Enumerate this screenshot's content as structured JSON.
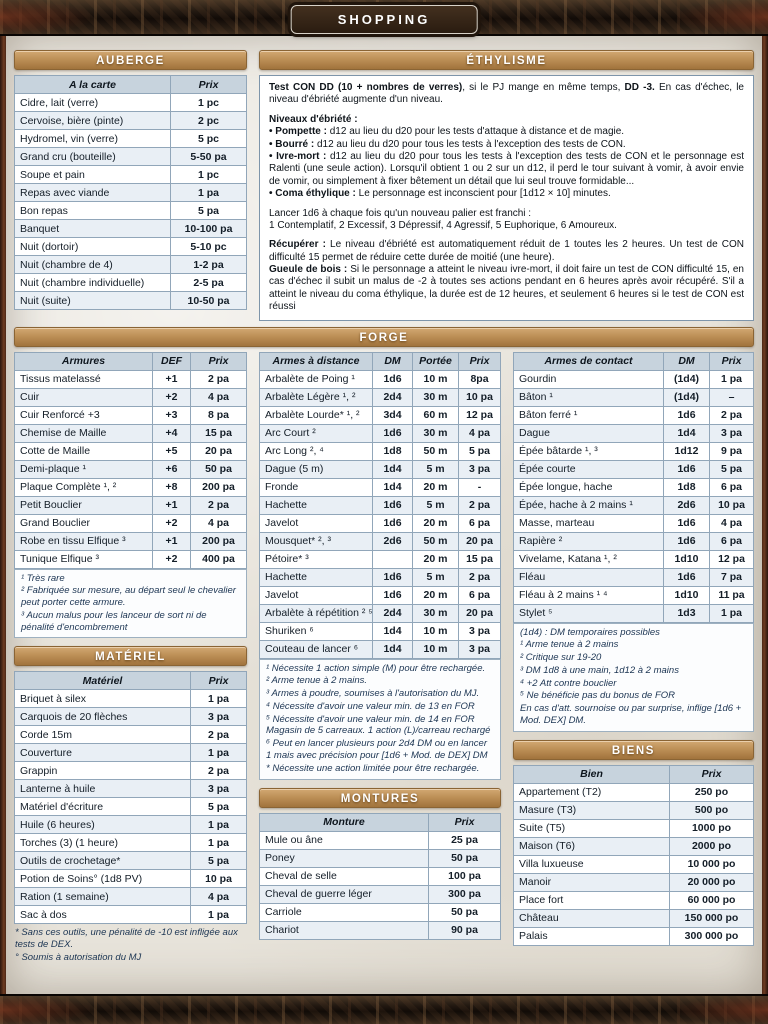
{
  "page": {
    "title": "SHOPPING"
  },
  "colors": {
    "accent_bar": "#bd9057",
    "table_header": "#c7d3dd",
    "row_alt": "#e9eff5",
    "badge": "#2a1c10"
  },
  "sections": {
    "auberge": {
      "title": "AUBERGE",
      "headers": [
        "A la carte",
        "Prix"
      ],
      "rows": [
        [
          "Cidre, lait (verre)",
          "1 pc"
        ],
        [
          "Cervoise, bière (pinte)",
          "2 pc"
        ],
        [
          "Hydromel, vin (verre)",
          "5 pc"
        ],
        [
          "Grand cru (bouteille)",
          "5-50 pa"
        ],
        [
          "Soupe et pain",
          "1 pc"
        ],
        [
          "Repas avec viande",
          "1 pa"
        ],
        [
          "Bon repas",
          "5 pa"
        ],
        [
          "Banquet",
          "10-100 pa"
        ],
        [
          "Nuit (dortoir)",
          "5-10 pc"
        ],
        [
          "Nuit (chambre de 4)",
          "1-2 pa"
        ],
        [
          "Nuit (chambre individuelle)",
          "2-5 pa"
        ],
        [
          "Nuit (suite)",
          "10-50 pa"
        ]
      ]
    },
    "ethylisme": {
      "title": "ÉTHYLISME",
      "blocks": [
        {
          "cls": "",
          "segs": [
            {
              "t": "Test CON DD (10 + nombres de verres)",
              "b": true
            },
            {
              "t": ", si le PJ mange en même temps, "
            },
            {
              "t": "DD -3.",
              "b": true
            },
            {
              "t": " En cas d'échec, le niveau d'ébriété augmente d'un niveau."
            }
          ]
        },
        {
          "cls": "mt",
          "segs": [
            {
              "t": "Niveaux d'ébriété :",
              "b": true
            }
          ]
        },
        {
          "cls": "",
          "segs": [
            {
              "t": "• Pompette :",
              "b": true
            },
            {
              "t": " d12 au lieu du d20 pour les tests d'attaque à distance et de magie."
            }
          ]
        },
        {
          "cls": "",
          "segs": [
            {
              "t": "• Bourré :",
              "b": true
            },
            {
              "t": " d12 au lieu du d20 pour tous les tests à l'exception des tests de CON."
            }
          ]
        },
        {
          "cls": "",
          "segs": [
            {
              "t": "• Ivre-mort :",
              "b": true
            },
            {
              "t": " d12 au lieu du d20 pour tous les tests à l'exception des tests de CON et le personnage est Ralenti (une seule action). Lorsqu'il obtient 1 ou 2 sur un d12, il perd le tour suivant à vomir, à avoir envie de vomir, ou simplement à fixer bêtement un détail que lui seul trouve formidable..."
            }
          ]
        },
        {
          "cls": "",
          "segs": [
            {
              "t": "• Coma éthylique :",
              "b": true
            },
            {
              "t": " Le personnage est inconscient pour [1d12 × 10] minutes."
            }
          ]
        },
        {
          "cls": "mt",
          "segs": [
            {
              "t": "Lancer 1d6 à chaque fois qu'un nouveau palier est franchi :"
            }
          ]
        },
        {
          "cls": "",
          "segs": [
            {
              "t": "1 Contemplatif, 2 Excessif, 3 Dépressif, 4 Agressif, 5 Euphorique, 6 Amoureux."
            }
          ]
        },
        {
          "cls": "mt",
          "segs": [
            {
              "t": "Récupérer :",
              "b": true
            },
            {
              "t": " Le niveau d'ébriété est automatiquement réduit de 1 toutes les 2 heures. Un test de CON difficulté 15 permet de réduire cette durée de moitié (une heure)."
            }
          ]
        },
        {
          "cls": "",
          "segs": [
            {
              "t": "Gueule de bois :",
              "b": true
            },
            {
              "t": " Si le personnage a atteint le niveau ivre-mort, il doit faire un test de CON difficulté 15, en cas d'échec il subit un malus de -2 à toutes ses actions pendant en 6 heures après avoir récupéré. S'il a atteint le niveau du coma éthylique, la durée est de 12 heures, et seulement 6 heures si le test de CON est réussi"
            }
          ]
        }
      ]
    },
    "forge": {
      "title": "FORGE"
    },
    "armures": {
      "headers": [
        "Armures",
        "DEF",
        "Prix"
      ],
      "rows": [
        [
          "Tissus matelassé",
          "+1",
          "2 pa"
        ],
        [
          "Cuir",
          "+2",
          "4 pa"
        ],
        [
          "Cuir Renforcé +3",
          "+3",
          "8 pa"
        ],
        [
          "Chemise de Maille",
          "+4",
          "15 pa"
        ],
        [
          "Cotte de Maille",
          "+5",
          "20 pa"
        ],
        [
          "Demi-plaque ¹",
          "+6",
          "50 pa"
        ],
        [
          "Plaque Complète ¹, ²",
          "+8",
          "200 pa"
        ],
        [
          "Petit Bouclier",
          "+1",
          "2 pa"
        ],
        [
          "Grand Bouclier",
          "+2",
          "4 pa"
        ],
        [
          "Robe en tissu Elfique ³",
          "+1",
          "200 pa"
        ],
        [
          "Tunique Elfique ³",
          "+2",
          "400 pa"
        ]
      ],
      "notes": [
        "¹ Très rare",
        "² Fabriquée sur mesure, au départ seul le chevalier peut porter cette armure.",
        "³ Aucun malus pour les lanceur de sort ni de pénalité d'encombrement"
      ]
    },
    "armes_distance": {
      "headers": [
        "Armes à distance",
        "DM",
        "Portée",
        "Prix"
      ],
      "rows": [
        [
          "Arbalète de Poing ¹",
          "1d6",
          "10 m",
          "8pa"
        ],
        [
          "Arbalète Légère ¹, ²",
          "2d4",
          "30 m",
          "10 pa"
        ],
        [
          "Arbalète Lourde* ¹, ²",
          "3d4",
          "60 m",
          "12 pa"
        ],
        [
          "Arc Court ²",
          "1d6",
          "30 m",
          "4 pa"
        ],
        [
          "Arc Long ², ⁴",
          "1d8",
          "50 m",
          "5 pa"
        ],
        [
          "Dague (5 m)",
          "1d4",
          "5 m",
          "3 pa"
        ],
        [
          "Fronde",
          "1d4",
          "20 m",
          "-"
        ],
        [
          "Hachette",
          "1d6",
          "5 m",
          "2 pa"
        ],
        [
          "Javelot",
          "1d6",
          "20 m",
          "6 pa"
        ],
        [
          "Mousquet* ², ³",
          "2d6",
          "50 m",
          "20 pa"
        ],
        [
          "Pétoire* ³",
          "",
          "20 m",
          "15 pa"
        ],
        [
          "Hachette",
          "1d6",
          "5 m",
          "2 pa"
        ],
        [
          "Javelot",
          "1d6",
          "20 m",
          "6 pa"
        ],
        [
          "Arbalète à répétition ² ⁵ *",
          "2d4",
          "30 m",
          "20 pa"
        ],
        [
          "Shuriken ⁶",
          "1d4",
          "10 m",
          "3 pa"
        ],
        [
          "Couteau de lancer ⁶",
          "1d4",
          "10 m",
          "3 pa"
        ]
      ],
      "notes": [
        "¹ Nécessite 1 action simple (M) pour être rechargée.",
        "² Arme tenue à 2 mains.",
        "³ Armes à poudre, soumises à l'autorisation du MJ.",
        "⁴ Nécessite d'avoir une valeur min. de 13 en FOR",
        "⁵ Nécessite d'avoir une valeur min. de 14 en FOR Magasin de 5 carreaux. 1 action (L)/carreau rechargé",
        "⁶ Peut en lancer plusieurs pour 2d4 DM ou en lancer 1 mais avec précision pour [1d6 + Mod. de DEX] DM",
        "* Nécessite une action limitée pour être rechargée."
      ]
    },
    "armes_contact": {
      "headers": [
        "Armes de contact",
        "DM",
        "Prix"
      ],
      "rows": [
        [
          "Gourdin",
          "(1d4)",
          "1 pa"
        ],
        [
          "Bâton ¹",
          "(1d4)",
          "–"
        ],
        [
          "Bâton ferré ¹",
          "1d6",
          "2 pa"
        ],
        [
          "Dague",
          "1d4",
          "3 pa"
        ],
        [
          "Épée bâtarde ¹, ³",
          "1d12",
          "9 pa"
        ],
        [
          "Épée courte",
          "1d6",
          "5 pa"
        ],
        [
          "Épée longue, hache",
          "1d8",
          "6 pa"
        ],
        [
          "Épée, hache à 2 mains ¹",
          "2d6",
          "10 pa"
        ],
        [
          "Masse, marteau",
          "1d6",
          "4 pa"
        ],
        [
          "Rapière ²",
          "1d6",
          "6 pa"
        ],
        [
          "Vivelame, Katana ¹, ²",
          "1d10",
          "12 pa"
        ],
        [
          "Fléau",
          "1d6",
          "7 pa"
        ],
        [
          "Fléau à 2 mains ¹ ⁴",
          "1d10",
          "11 pa"
        ],
        [
          "Stylet ⁵",
          "1d3",
          "1 pa"
        ]
      ],
      "notes": [
        "(1d4) : DM temporaires possibles",
        "¹ Arme tenue à 2 mains",
        "² Critique sur 19-20",
        "³ DM 1d8 à une main, 1d12 à 2 mains",
        "⁴ +2 Att contre bouclier",
        "⁵ Ne bénéficie pas du bonus de FOR",
        "En cas d'att. sournoise ou par surprise, inflige [1d6 + Mod. DEX] DM."
      ]
    },
    "materiel": {
      "title": "MATÉRIEL",
      "headers": [
        "Matériel",
        "Prix"
      ],
      "rows": [
        [
          "Briquet à silex",
          "1 pa"
        ],
        [
          "Carquois de 20 flèches",
          "3 pa"
        ],
        [
          "Corde 15m",
          "2 pa"
        ],
        [
          "Couverture",
          "1 pa"
        ],
        [
          "Grappin",
          "2 pa"
        ],
        [
          "Lanterne à huile",
          "3 pa"
        ],
        [
          "Matériel d'écriture",
          "5 pa"
        ],
        [
          "Huile (6 heures)",
          "1 pa"
        ],
        [
          "Torches (3) (1 heure)",
          "1 pa"
        ],
        [
          "Outils de crochetage*",
          "5 pa"
        ],
        [
          "Potion de Soins° (1d8 PV)",
          "10 pa"
        ],
        [
          "Ration (1 semaine)",
          "4 pa"
        ],
        [
          "Sac à dos",
          "1 pa"
        ]
      ],
      "notes": [
        "* Sans ces outils, une pénalité de -10 est infligée aux tests de DEX.",
        "° Soumis à autorisation du MJ"
      ]
    },
    "montures": {
      "title": "MONTURES",
      "headers": [
        "Monture",
        "Prix"
      ],
      "rows": [
        [
          "Mule ou âne",
          "25 pa"
        ],
        [
          "Poney",
          "50 pa"
        ],
        [
          "Cheval de selle",
          "100 pa"
        ],
        [
          "Cheval de guerre léger",
          "300 pa"
        ],
        [
          "Carriole",
          "50 pa"
        ],
        [
          "Chariot",
          "90 pa"
        ]
      ]
    },
    "biens": {
      "title": "BIENS",
      "headers": [
        "Bien",
        "Prix"
      ],
      "rows": [
        [
          "Appartement (T2)",
          "250 po"
        ],
        [
          "Masure (T3)",
          "500 po"
        ],
        [
          "Suite (T5)",
          "1000 po"
        ],
        [
          "Maison (T6)",
          "2000 po"
        ],
        [
          "Villa luxueuse",
          "10 000 po"
        ],
        [
          "Manoir",
          "20 000 po"
        ],
        [
          "Place fort",
          "60 000 po"
        ],
        [
          "Château",
          "150 000 po"
        ],
        [
          "Palais",
          "300 000 po"
        ]
      ]
    }
  }
}
